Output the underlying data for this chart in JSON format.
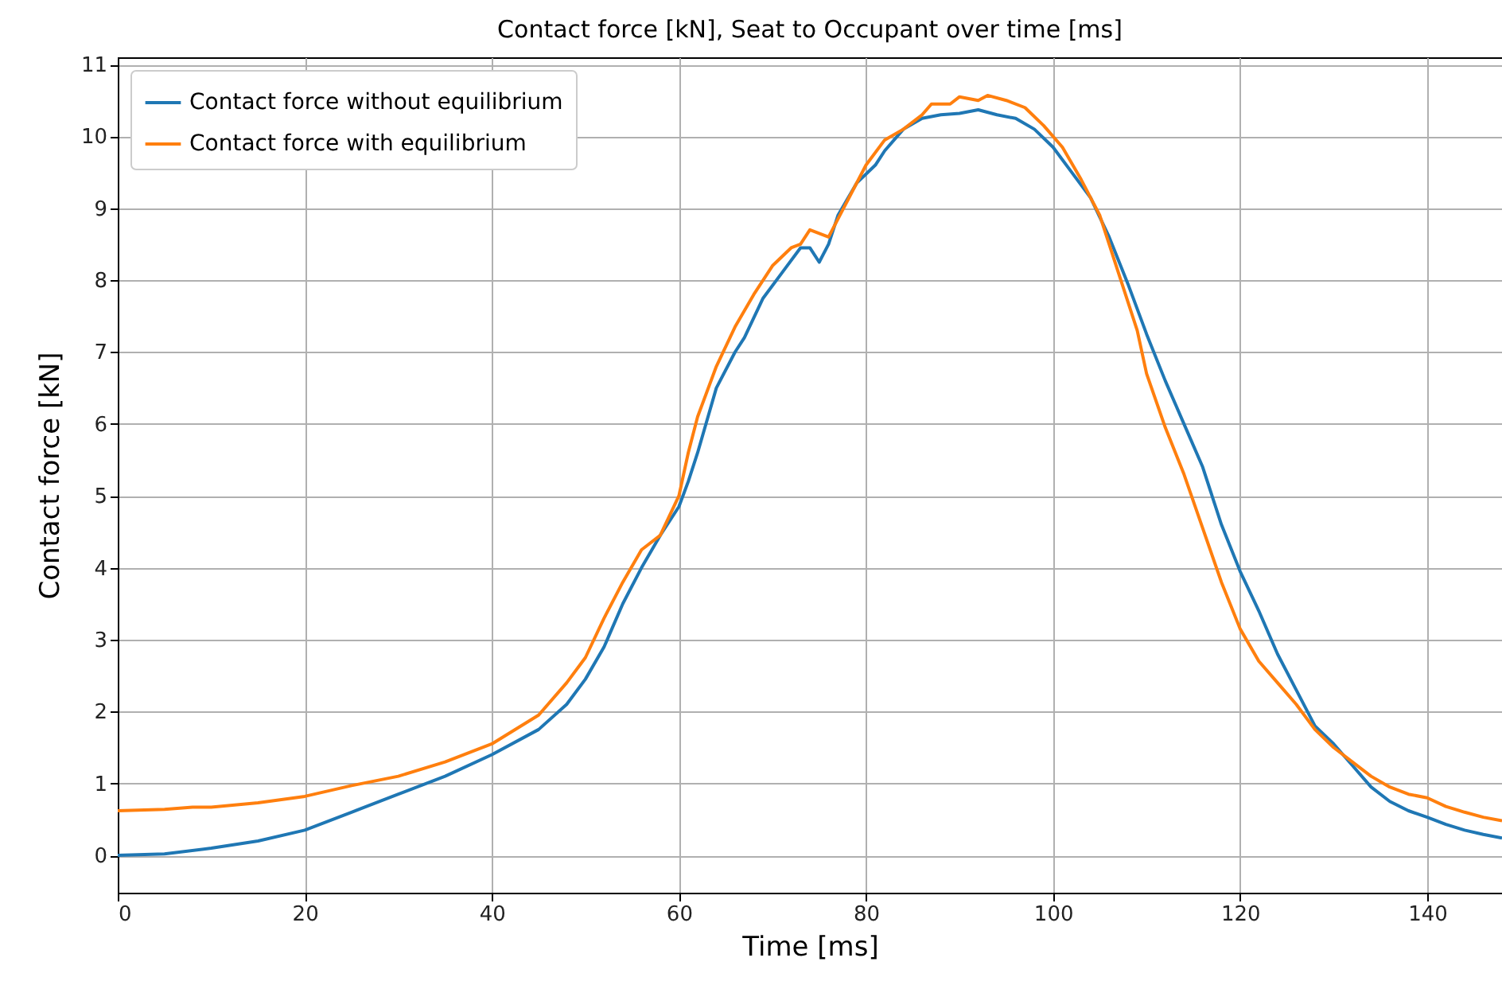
{
  "chart_data": {
    "type": "line",
    "title": "Contact force [kN], Seat to Occupant over time [ms]",
    "xlabel": "Time [ms]",
    "ylabel": "Contact force [kN]",
    "xlim": [
      0,
      148
    ],
    "ylim": [
      -0.52,
      11.1
    ],
    "xticks": [
      0,
      20,
      40,
      60,
      80,
      100,
      120,
      140
    ],
    "yticks": [
      0,
      1,
      2,
      3,
      4,
      5,
      6,
      7,
      8,
      9,
      10,
      11
    ],
    "grid": true,
    "legend": "top left",
    "line_style": "solid",
    "marker": "none",
    "series": [
      {
        "name": "Contact force without equilibrium",
        "color": "#1f77b4",
        "x": [
          0,
          5,
          10,
          15,
          20,
          25,
          30,
          35,
          40,
          45,
          48,
          50,
          52,
          54,
          56,
          58,
          60,
          61,
          62,
          64,
          66,
          67,
          69,
          71,
          73,
          74,
          75,
          76,
          77,
          79,
          81,
          82,
          84,
          86,
          88,
          90,
          92,
          94,
          96,
          98,
          100,
          102,
          104,
          106,
          108,
          110,
          112,
          114,
          116,
          118,
          120,
          122,
          124,
          126,
          128,
          130,
          132,
          134,
          136,
          138,
          140,
          142,
          144,
          146,
          148
        ],
        "values": [
          0.0,
          0.02,
          0.1,
          0.2,
          0.35,
          0.6,
          0.85,
          1.1,
          1.4,
          1.75,
          2.1,
          2.45,
          2.9,
          3.5,
          4.0,
          4.45,
          4.85,
          5.2,
          5.6,
          6.5,
          7.0,
          7.2,
          7.75,
          8.1,
          8.45,
          8.45,
          8.25,
          8.5,
          8.9,
          9.35,
          9.6,
          9.8,
          10.1,
          10.25,
          10.3,
          10.32,
          10.37,
          10.3,
          10.25,
          10.1,
          9.85,
          9.5,
          9.15,
          8.6,
          7.95,
          7.25,
          6.6,
          6.0,
          5.4,
          4.6,
          3.95,
          3.4,
          2.8,
          2.3,
          1.8,
          1.55,
          1.25,
          0.95,
          0.75,
          0.62,
          0.53,
          0.43,
          0.35,
          0.29,
          0.24
        ]
      },
      {
        "name": "Contact force with equilibrium",
        "color": "#ff7f0e",
        "x": [
          0,
          5,
          8,
          10,
          15,
          20,
          25,
          30,
          35,
          40,
          45,
          48,
          50,
          52,
          54,
          56,
          58,
          60,
          61,
          62,
          64,
          66,
          68,
          70,
          72,
          73,
          74,
          76,
          78,
          80,
          82,
          84,
          86,
          87,
          89,
          90,
          92,
          93,
          95,
          97,
          99,
          101,
          103,
          105,
          107,
          109,
          110,
          112,
          114,
          116,
          118,
          120,
          122,
          124,
          126,
          128,
          130,
          132,
          134,
          136,
          138,
          140,
          142,
          144,
          146,
          148
        ],
        "values": [
          0.62,
          0.64,
          0.67,
          0.67,
          0.73,
          0.82,
          0.97,
          1.1,
          1.3,
          1.55,
          1.95,
          2.4,
          2.75,
          3.3,
          3.8,
          4.25,
          4.45,
          5.0,
          5.6,
          6.1,
          6.8,
          7.35,
          7.8,
          8.2,
          8.45,
          8.5,
          8.7,
          8.6,
          9.1,
          9.6,
          9.95,
          10.1,
          10.3,
          10.45,
          10.45,
          10.55,
          10.5,
          10.57,
          10.5,
          10.4,
          10.15,
          9.85,
          9.4,
          8.9,
          8.1,
          7.3,
          6.7,
          5.95,
          5.3,
          4.55,
          3.8,
          3.15,
          2.7,
          2.4,
          2.1,
          1.75,
          1.5,
          1.3,
          1.1,
          0.95,
          0.85,
          0.8,
          0.68,
          0.6,
          0.53,
          0.48
        ]
      }
    ]
  }
}
